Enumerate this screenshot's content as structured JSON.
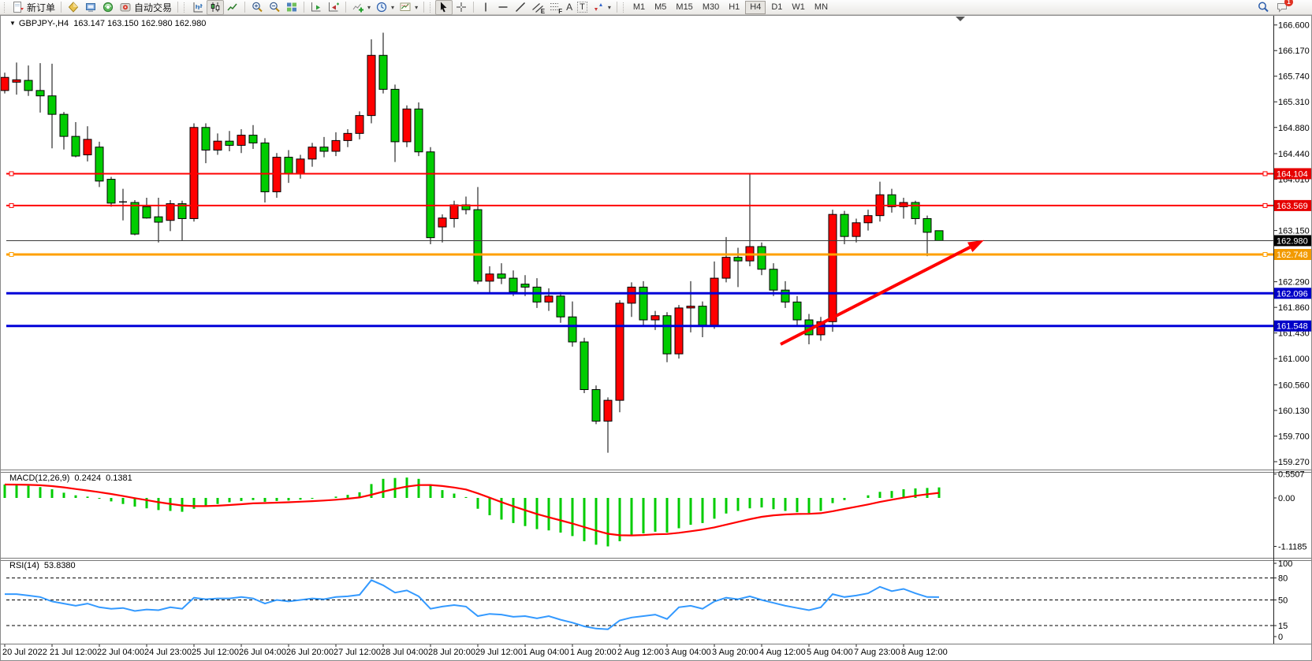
{
  "window": {
    "title_overlay": "GBPJPY-,H4  163.147 163.150 162.980 162.980"
  },
  "toolbar": {
    "new_order_label": "新订单",
    "auto_trading_label": "自动交易",
    "letters": {
      "channel": "E",
      "fibonacci": "F",
      "text": "A",
      "text_label": "T"
    },
    "timeframes": [
      "M1",
      "M5",
      "M15",
      "M30",
      "H1",
      "H4",
      "D1",
      "W1",
      "MN"
    ],
    "active_timeframe": "H4",
    "notification_count": "1"
  },
  "chart_data": {
    "type": "candlestick",
    "symbol": "GBPJPY-",
    "timeframe": "H4",
    "ohlc_display": {
      "open": "163.147",
      "high": "163.150",
      "low": "162.980",
      "close": "162.980"
    },
    "colors": {
      "bull_candle": "#FF0000",
      "bear_candle": "#00CC00",
      "wick": "#000000",
      "macd_histogram": "#00CC00",
      "macd_signal": "#FF0000",
      "rsi_line": "#3399FF",
      "level_red": "#FF0000",
      "level_orange": "#FFA000",
      "level_blue": "#0000D8",
      "bid_line": "#333333"
    },
    "ylim": [
      159.13,
      166.75
    ],
    "price_ticks": [
      "166.600",
      "166.170",
      "165.740",
      "165.310",
      "164.880",
      "164.440",
      "164.010",
      "163.150",
      "162.290",
      "161.860",
      "161.430",
      "161.000",
      "160.560",
      "160.130",
      "159.700",
      "159.270"
    ],
    "x_labels": [
      "20 Jul 2022",
      "21 Jul 12:00",
      "22 Jul 04:00",
      "24 Jul 23:00",
      "25 Jul 12:00",
      "26 Jul 04:00",
      "26 Jul 20:00",
      "27 Jul 12:00",
      "28 Jul 04:00",
      "28 Jul 20:00",
      "29 Jul 12:00",
      "1 Aug 04:00",
      "1 Aug 20:00",
      "2 Aug 12:00",
      "3 Aug 04:00",
      "3 Aug 20:00",
      "4 Aug 12:00",
      "5 Aug 04:00",
      "7 Aug 23:00",
      "8 Aug 12:00"
    ],
    "x_label_step": 4,
    "candles": [
      [
        165.5,
        165.8,
        165.45,
        165.72
      ],
      [
        165.64,
        165.97,
        165.43,
        165.68
      ],
      [
        165.67,
        165.92,
        165.41,
        165.5
      ],
      [
        165.5,
        165.96,
        165.13,
        165.41
      ],
      [
        165.41,
        165.95,
        164.53,
        165.1
      ],
      [
        165.1,
        165.14,
        164.51,
        164.73
      ],
      [
        164.73,
        164.97,
        164.38,
        164.4
      ],
      [
        164.42,
        164.9,
        164.31,
        164.68
      ],
      [
        164.55,
        164.64,
        163.88,
        163.98
      ],
      [
        164.01,
        164.05,
        163.55,
        163.61
      ],
      [
        163.63,
        163.85,
        163.32,
        163.62
      ],
      [
        163.62,
        163.66,
        163.07,
        163.09
      ],
      [
        163.55,
        163.7,
        163.35,
        163.36
      ],
      [
        163.38,
        163.7,
        162.95,
        163.29
      ],
      [
        163.32,
        163.66,
        163.14,
        163.6
      ],
      [
        163.6,
        163.65,
        162.98,
        163.35
      ],
      [
        163.35,
        164.95,
        163.3,
        164.88
      ],
      [
        164.88,
        164.95,
        164.28,
        164.5
      ],
      [
        164.5,
        164.78,
        164.42,
        164.65
      ],
      [
        164.65,
        164.82,
        164.48,
        164.58
      ],
      [
        164.58,
        164.85,
        164.45,
        164.75
      ],
      [
        164.75,
        164.92,
        164.52,
        164.62
      ],
      [
        164.62,
        164.7,
        163.62,
        163.8
      ],
      [
        163.8,
        164.45,
        163.7,
        164.38
      ],
      [
        164.38,
        164.5,
        163.95,
        164.1
      ],
      [
        164.1,
        164.42,
        164.02,
        164.35
      ],
      [
        164.35,
        164.62,
        164.22,
        164.55
      ],
      [
        164.55,
        164.72,
        164.38,
        164.48
      ],
      [
        164.48,
        164.8,
        164.4,
        164.66
      ],
      [
        164.66,
        164.85,
        164.55,
        164.78
      ],
      [
        164.78,
        165.15,
        164.68,
        165.08
      ],
      [
        165.08,
        166.36,
        164.95,
        166.09
      ],
      [
        166.09,
        166.47,
        165.45,
        165.52
      ],
      [
        165.52,
        165.6,
        164.3,
        164.64
      ],
      [
        164.64,
        165.25,
        164.55,
        165.19
      ],
      [
        165.19,
        165.3,
        164.4,
        164.47
      ],
      [
        164.47,
        164.55,
        162.92,
        163.03
      ],
      [
        163.21,
        163.42,
        162.95,
        163.36
      ],
      [
        163.35,
        163.65,
        163.2,
        163.58
      ],
      [
        163.58,
        163.72,
        163.42,
        163.5
      ],
      [
        163.5,
        163.88,
        162.25,
        162.3
      ],
      [
        162.3,
        162.55,
        162.1,
        162.42
      ],
      [
        162.42,
        162.6,
        162.25,
        162.35
      ],
      [
        162.35,
        162.48,
        162.05,
        162.12
      ],
      [
        162.25,
        162.4,
        162.05,
        162.2
      ],
      [
        162.2,
        162.35,
        161.85,
        161.95
      ],
      [
        161.95,
        162.18,
        161.8,
        162.05
      ],
      [
        162.05,
        162.12,
        161.6,
        161.7
      ],
      [
        161.7,
        161.96,
        161.2,
        161.28
      ],
      [
        161.28,
        161.35,
        160.42,
        160.48
      ],
      [
        160.48,
        160.55,
        159.9,
        159.95
      ],
      [
        159.95,
        160.35,
        159.42,
        160.3
      ],
      [
        160.3,
        161.98,
        160.1,
        161.93
      ],
      [
        161.93,
        162.28,
        161.7,
        162.2
      ],
      [
        162.2,
        162.3,
        161.55,
        161.65
      ],
      [
        161.65,
        161.8,
        161.48,
        161.72
      ],
      [
        161.72,
        161.78,
        160.94,
        161.08
      ],
      [
        161.08,
        161.9,
        161.0,
        161.85
      ],
      [
        161.85,
        162.3,
        161.44,
        161.88
      ],
      [
        161.88,
        161.96,
        161.36,
        161.56
      ],
      [
        161.56,
        162.63,
        161.5,
        162.35
      ],
      [
        162.35,
        163.04,
        162.28,
        162.7
      ],
      [
        162.7,
        162.86,
        162.2,
        162.64
      ],
      [
        162.64,
        164.1,
        162.55,
        162.88
      ],
      [
        162.88,
        162.95,
        162.4,
        162.5
      ],
      [
        162.5,
        162.6,
        162.05,
        162.15
      ],
      [
        162.15,
        162.3,
        161.85,
        161.95
      ],
      [
        161.95,
        162.05,
        161.55,
        161.65
      ],
      [
        161.65,
        161.75,
        161.24,
        161.4
      ],
      [
        161.4,
        161.7,
        161.3,
        161.62
      ],
      [
        161.62,
        163.5,
        161.45,
        163.42
      ],
      [
        163.42,
        163.48,
        162.92,
        163.05
      ],
      [
        163.05,
        163.35,
        162.95,
        163.28
      ],
      [
        163.28,
        163.5,
        163.15,
        163.4
      ],
      [
        163.4,
        163.97,
        163.3,
        163.75
      ],
      [
        163.75,
        163.85,
        163.45,
        163.55
      ],
      [
        163.55,
        163.7,
        163.35,
        163.62
      ],
      [
        163.62,
        163.65,
        163.25,
        163.35
      ],
      [
        163.35,
        163.4,
        162.72,
        163.12
      ],
      [
        163.147,
        163.15,
        162.98,
        162.98
      ]
    ],
    "hlines": [
      {
        "price": 164.104,
        "label": "164.104",
        "color": "#FF0000",
        "badge_bg": "#E60000",
        "width": 2,
        "handles": true
      },
      {
        "price": 163.569,
        "label": "163.569",
        "color": "#FF0000",
        "badge_bg": "#E60000",
        "width": 2,
        "handles": true
      },
      {
        "price": 162.98,
        "label": "162.980",
        "color": "#3a3a3a",
        "badge_bg": "#000000",
        "width": 1,
        "handles": false
      },
      {
        "price": 162.748,
        "label": "162.748",
        "color": "#FFA000",
        "badge_bg": "#F29A00",
        "width": 3,
        "handles": true
      },
      {
        "price": 162.096,
        "label": "162.096",
        "color": "#0000D8",
        "badge_bg": "#0000C8",
        "width": 3,
        "handles": false
      },
      {
        "price": 161.548,
        "label": "161.548",
        "color": "#0000D8",
        "badge_bg": "#0000C8",
        "width": 3,
        "handles": false
      }
    ],
    "trend_arrow": {
      "from": {
        "bar": 65.6,
        "price": 161.24
      },
      "to": {
        "bar": 82.8,
        "price": 162.99
      },
      "color": "#FF0000"
    },
    "shift_marker_bar": 80.8,
    "macd": {
      "label": "MACD(12,26,9)",
      "value_main": "0.2424",
      "value_signal": "0.1381",
      "signal_ema_period": 9,
      "scale": [
        "0.5507",
        "0.00",
        "-1.1185"
      ],
      "values": [
        0.31,
        0.3,
        0.28,
        0.25,
        0.2,
        0.12,
        0.06,
        0.03,
        -0.02,
        -0.08,
        -0.14,
        -0.2,
        -0.24,
        -0.28,
        -0.3,
        -0.32,
        -0.25,
        -0.19,
        -0.14,
        -0.1,
        -0.07,
        -0.05,
        -0.09,
        -0.07,
        -0.06,
        -0.04,
        -0.02,
        0.0,
        0.03,
        0.07,
        0.13,
        0.32,
        0.44,
        0.46,
        0.47,
        0.44,
        0.3,
        0.18,
        0.1,
        0.02,
        -0.25,
        -0.4,
        -0.5,
        -0.58,
        -0.65,
        -0.72,
        -0.75,
        -0.8,
        -0.88,
        -1.0,
        -1.08,
        -1.1185,
        -1.0,
        -0.88,
        -0.82,
        -0.78,
        -0.8,
        -0.7,
        -0.62,
        -0.58,
        -0.48,
        -0.36,
        -0.3,
        -0.24,
        -0.22,
        -0.26,
        -0.3,
        -0.33,
        -0.35,
        -0.3,
        -0.12,
        -0.05,
        0.0,
        0.06,
        0.14,
        0.16,
        0.2,
        0.22,
        0.23,
        0.2424
      ]
    },
    "rsi": {
      "label": "RSI(14)",
      "value": "53.8380",
      "levels": [
        80,
        50,
        15
      ],
      "scale": [
        "100",
        "80",
        "50",
        "15",
        "0"
      ],
      "values": [
        58,
        58,
        56,
        54,
        48,
        45,
        42,
        45,
        40,
        38,
        39,
        35,
        37,
        36,
        40,
        38,
        53,
        51,
        52,
        52,
        54,
        52,
        45,
        50,
        48,
        50,
        52,
        51,
        54,
        55,
        57,
        77,
        70,
        60,
        63,
        55,
        38,
        41,
        43,
        41,
        28,
        31,
        30,
        27,
        28,
        25,
        28,
        23,
        19,
        14,
        11,
        10,
        22,
        26,
        28,
        30,
        24,
        40,
        42,
        38,
        48,
        53,
        51,
        55,
        50,
        46,
        42,
        39,
        36,
        40,
        58,
        54,
        56,
        59,
        68,
        62,
        65,
        59,
        54,
        53.84
      ]
    }
  }
}
